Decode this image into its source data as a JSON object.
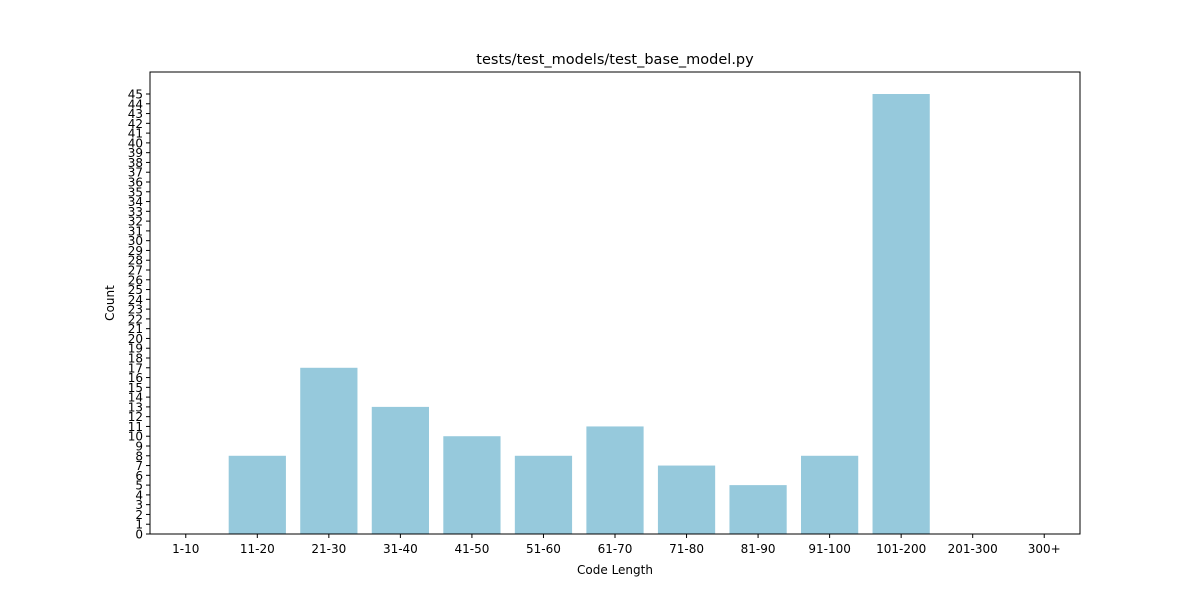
{
  "chart_data": {
    "type": "bar",
    "title": "tests/test_models/test_base_model.py",
    "xlabel": "Code Length",
    "ylabel": "Count",
    "categories": [
      "1-10",
      "11-20",
      "21-30",
      "31-40",
      "41-50",
      "51-60",
      "61-70",
      "71-80",
      "81-90",
      "91-100",
      "101-200",
      "201-300",
      "300+"
    ],
    "values": [
      0,
      8,
      17,
      13,
      10,
      8,
      11,
      7,
      5,
      8,
      45,
      0,
      0
    ],
    "ylim": [
      0,
      47.25
    ],
    "yticks": [
      0,
      1,
      2,
      3,
      4,
      5,
      6,
      7,
      8,
      9,
      10,
      11,
      12,
      13,
      14,
      15,
      16,
      17,
      18,
      19,
      20,
      21,
      22,
      23,
      24,
      25,
      26,
      27,
      28,
      29,
      30,
      31,
      32,
      33,
      34,
      35,
      36,
      37,
      38,
      39,
      40,
      41,
      42,
      43,
      44,
      45
    ],
    "grid": false,
    "bar_color": "#96c9dc"
  }
}
